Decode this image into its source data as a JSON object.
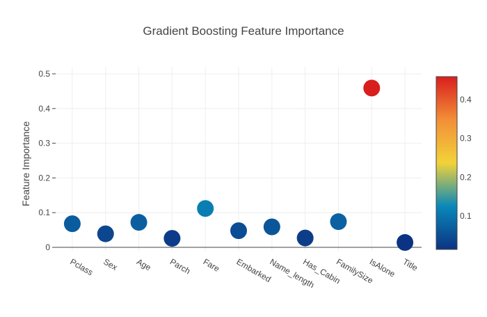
{
  "chart_data": {
    "type": "scatter",
    "title": "Gradient Boosting Feature Importance",
    "xlabel": "",
    "ylabel": "Feature Importance",
    "categories": [
      "Pclass",
      "Sex",
      "Age",
      "Parch",
      "Fare",
      "Embarked",
      "Name_length",
      "Has_Cabin",
      "FamilySize",
      "IsAlone",
      "Title"
    ],
    "values": [
      0.068,
      0.039,
      0.072,
      0.026,
      0.112,
      0.048,
      0.059,
      0.027,
      0.074,
      0.459,
      0.014
    ],
    "ylim": [
      -0.01,
      0.52
    ],
    "y_ticks": [
      0,
      0.1,
      0.2,
      0.3,
      0.4,
      0.5
    ],
    "y_tick_labels": [
      "0",
      "0.1",
      "0.2",
      "0.3",
      "0.4",
      "0.5"
    ],
    "grid": true,
    "colorscale": {
      "name": "Portland",
      "range": [
        0.014,
        0.459
      ],
      "stops": [
        [
          0,
          "#0c3383"
        ],
        [
          0.25,
          "#0a88ba"
        ],
        [
          0.5,
          "#f2d338"
        ],
        [
          0.75,
          "#f28f38"
        ],
        [
          1,
          "#d91e1e"
        ]
      ],
      "ticks": [
        0.1,
        0.2,
        0.3,
        0.4
      ],
      "tick_labels": [
        "0.1",
        "0.2",
        "0.3",
        "0.4"
      ]
    }
  }
}
